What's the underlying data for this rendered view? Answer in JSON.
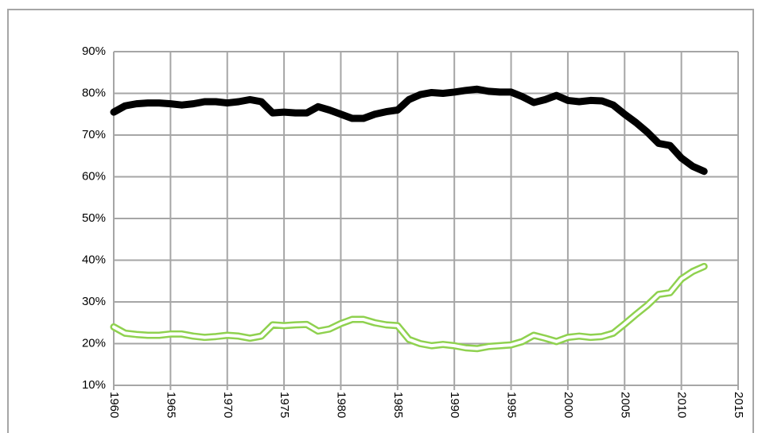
{
  "chart_data": {
    "type": "line",
    "x": [
      1960,
      1961,
      1962,
      1963,
      1964,
      1965,
      1966,
      1967,
      1968,
      1969,
      1970,
      1971,
      1972,
      1973,
      1974,
      1975,
      1976,
      1977,
      1978,
      1979,
      1980,
      1981,
      1982,
      1983,
      1984,
      1985,
      1986,
      1987,
      1988,
      1989,
      1990,
      1991,
      1992,
      1993,
      1994,
      1995,
      1996,
      1997,
      1998,
      1999,
      2000,
      2001,
      2002,
      2003,
      2004,
      2005,
      2006,
      2007,
      2008,
      2009,
      2010,
      2011,
      2012
    ],
    "series": [
      {
        "color": "#000000",
        "style": "solid",
        "values": [
          75.5,
          77,
          77.5,
          77.7,
          77.7,
          77.5,
          77.2,
          77.5,
          78,
          78,
          77.7,
          78,
          78.5,
          78,
          75.3,
          75.5,
          75.3,
          75.3,
          76.8,
          76,
          75,
          74,
          74,
          75,
          75.6,
          76,
          78.5,
          79.7,
          80.2,
          80,
          80.3,
          80.7,
          81,
          80.5,
          80.3,
          80.3,
          79.2,
          77.8,
          78.5,
          79.5,
          78.3,
          78,
          78.3,
          78.2,
          77.2,
          75,
          73,
          70.7,
          68,
          67.5,
          64.5,
          62.5,
          61.3
        ]
      },
      {
        "color": "#8fd14f",
        "style": "double",
        "values": [
          24,
          22.5,
          22.2,
          22,
          22,
          22.3,
          22.3,
          21.8,
          21.5,
          21.7,
          22,
          21.8,
          21.3,
          21.8,
          24.5,
          24.3,
          24.5,
          24.6,
          23,
          23.5,
          24.8,
          25.8,
          25.8,
          25,
          24.5,
          24.3,
          21,
          20,
          19.5,
          19.8,
          19.5,
          19,
          18.8,
          19.3,
          19.5,
          19.7,
          20.5,
          22,
          21.3,
          20.5,
          21.5,
          21.8,
          21.5,
          21.7,
          22.5,
          24.7,
          27,
          29.2,
          31.8,
          32.2,
          35.5,
          37.3,
          38.5
        ]
      }
    ],
    "xlim": [
      1960,
      2015
    ],
    "xticks": [
      1960,
      1965,
      1970,
      1975,
      1980,
      1985,
      1990,
      1995,
      2000,
      2005,
      2010,
      2015
    ],
    "ylim": [
      10,
      90
    ],
    "yticks": [
      {
        "value": 10,
        "label": "10%"
      },
      {
        "value": 20,
        "label": "20%"
      },
      {
        "value": 30,
        "label": "30%"
      },
      {
        "value": 40,
        "label": "40%"
      },
      {
        "value": 50,
        "label": "50%"
      },
      {
        "value": 60,
        "label": "60%"
      },
      {
        "value": 70,
        "label": "70%"
      },
      {
        "value": 80,
        "label": "80%"
      },
      {
        "value": 90,
        "label": "90%"
      }
    ],
    "grid": true
  }
}
